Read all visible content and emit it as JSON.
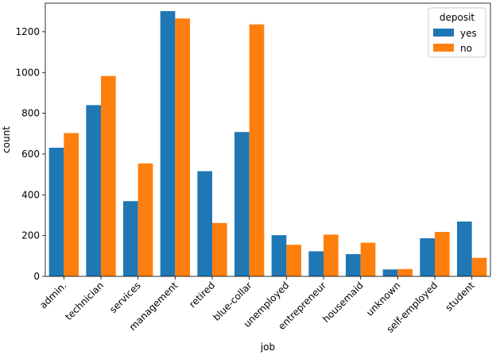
{
  "chart_data": {
    "type": "bar",
    "title": "",
    "xlabel": "job",
    "ylabel": "count",
    "ylim": [
      0,
      1340
    ],
    "yticks": [
      0,
      200,
      400,
      600,
      800,
      1000,
      1200
    ],
    "categories": [
      "admin.",
      "technician",
      "services",
      "management",
      "retired",
      "blue-collar",
      "unemployed",
      "entrepreneur",
      "housemaid",
      "unknown",
      "self-employed",
      "student"
    ],
    "series": [
      {
        "name": "yes",
        "color": "#1f77b4",
        "values": [
          631,
          840,
          369,
          1301,
          516,
          708,
          202,
          123,
          109,
          34,
          187,
          269
        ]
      },
      {
        "name": "no",
        "color": "#ff7f0e",
        "values": [
          703,
          983,
          554,
          1265,
          262,
          1236,
          155,
          205,
          165,
          36,
          218,
          91
        ]
      }
    ],
    "legend": {
      "title": "deposit",
      "placement": "top-right"
    },
    "grid": false
  }
}
